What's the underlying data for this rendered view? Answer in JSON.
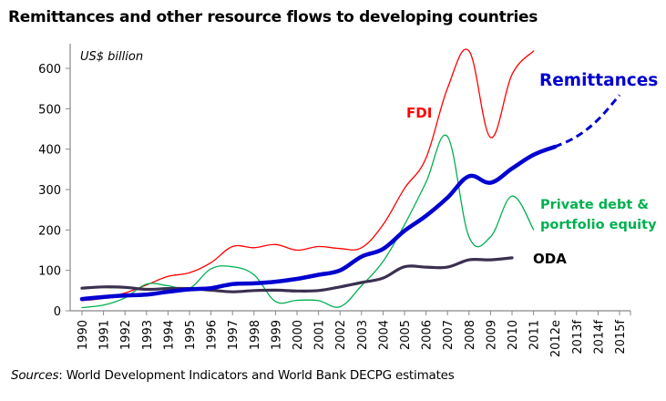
{
  "chart_data": {
    "type": "line",
    "title": "Remittances and other resource flows to developing countries",
    "ylabel": "US$ billion",
    "xlabel": "",
    "source_prefix": "Sources",
    "source_text": ": World Development Indicators and World Bank DECPG estimates",
    "ylim": [
      0,
      600
    ],
    "yticks": [
      0,
      100,
      200,
      300,
      400,
      500,
      600
    ],
    "grid": false,
    "legend": "inline-labels",
    "categories": [
      "1990",
      "1991",
      "1992",
      "1993",
      "1994",
      "1995",
      "1996",
      "1997",
      "1998",
      "1999",
      "2000",
      "2001",
      "2002",
      "2003",
      "2004",
      "2005",
      "2006",
      "2007",
      "2008",
      "2009",
      "2010",
      "2011",
      "2012e",
      "2013f",
      "2014f",
      "2015f"
    ],
    "series": [
      {
        "name": "FDI",
        "label": "FDI",
        "color": "#ff0000",
        "style": "solid",
        "values": [
          25,
          31,
          44,
          64,
          85,
          94,
          119,
          159,
          156,
          164,
          150,
          159,
          154,
          156,
          213,
          303,
          378,
          551,
          643,
          429,
          585,
          643,
          null,
          null,
          null,
          null
        ]
      },
      {
        "name": "Private debt & portfolio equity",
        "label_line1": "Private debt &",
        "label_line2": "portfolio equity",
        "color": "#00b050",
        "style": "solid",
        "values": [
          8,
          14,
          32,
          66,
          62,
          56,
          104,
          109,
          89,
          23,
          26,
          25,
          10,
          62,
          122,
          213,
          318,
          431,
          183,
          183,
          284,
          201,
          null,
          null,
          null,
          null
        ]
      },
      {
        "name": "ODA",
        "label": "ODA",
        "color": "#3b3050",
        "style": "solid",
        "values": [
          56,
          59,
          58,
          53,
          55,
          55,
          51,
          47,
          50,
          51,
          49,
          50,
          59,
          70,
          81,
          109,
          108,
          108,
          126,
          126,
          131,
          null,
          null,
          null,
          null,
          null
        ]
      },
      {
        "name": "Remittances",
        "label": "Remittances",
        "color": "#0000d0",
        "style": "solid-then-dashed",
        "forecast_from": "2012e",
        "values": [
          29,
          34,
          38,
          40,
          47,
          53,
          56,
          66,
          68,
          72,
          79,
          89,
          100,
          134,
          153,
          198,
          235,
          280,
          333,
          317,
          352,
          386,
          406,
          431,
          473,
          534
        ]
      }
    ]
  }
}
